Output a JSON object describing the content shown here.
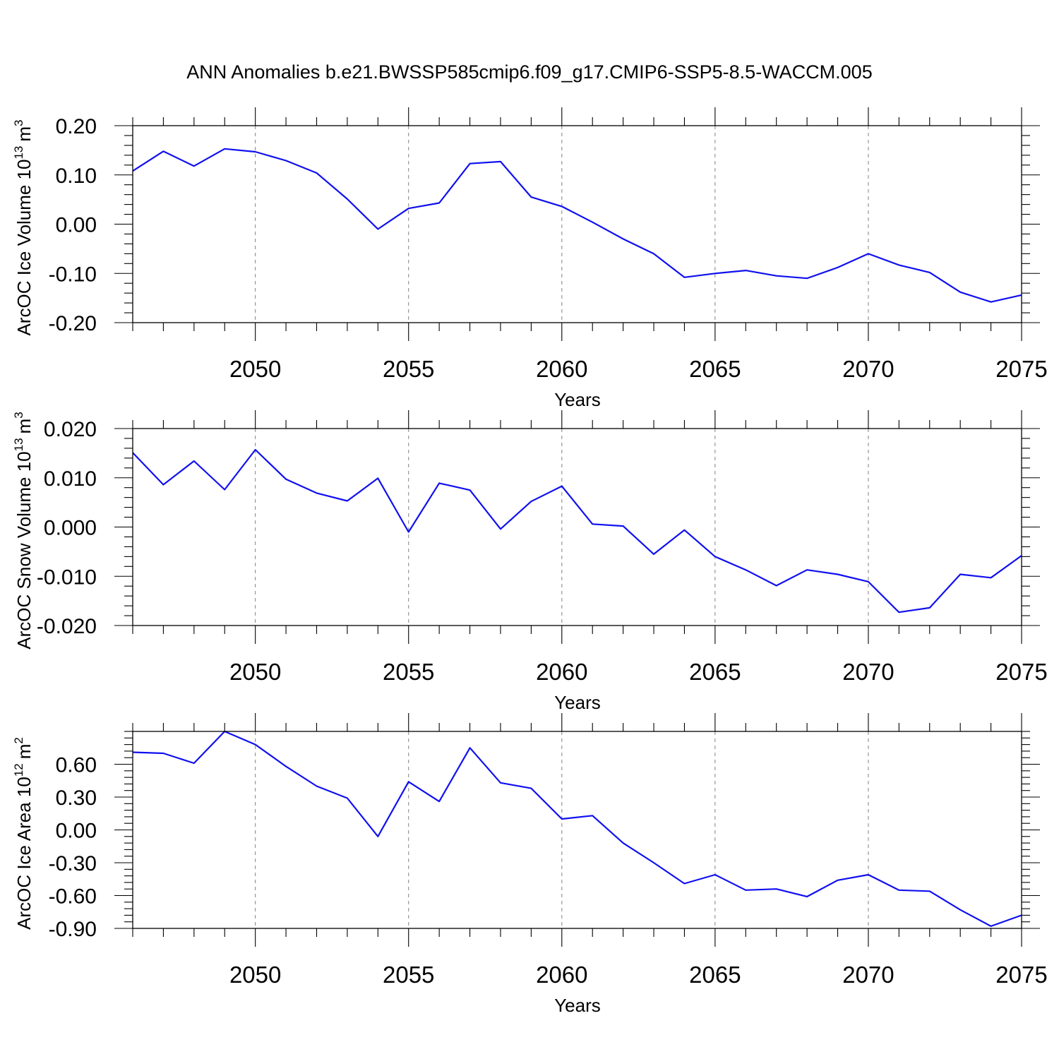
{
  "title": "ANN Anomalies b.e21.BWSSP585cmip6.f09_g17.CMIP6-SSP5-8.5-WACCM.005",
  "line_color": "#1010f0",
  "chart_data": [
    {
      "type": "line",
      "ylabel_prefix": "ArcOC Ice Volume 10",
      "ylabel_exp": "13",
      "ylabel_unit": "m",
      "ylabel_unit_exp": "3",
      "xlabel": "Years",
      "xlim": [
        2046,
        2075
      ],
      "ylim": [
        -0.2,
        0.2
      ],
      "x_ticks": [
        2050,
        2055,
        2060,
        2065,
        2070,
        2075
      ],
      "y_ticks": [
        -0.2,
        -0.1,
        0.0,
        0.1,
        0.2
      ],
      "y_tick_labels": [
        "-0.20",
        "-0.10",
        "0.00",
        "0.10",
        "0.20"
      ],
      "x": [
        2046,
        2047,
        2048,
        2049,
        2050,
        2051,
        2052,
        2053,
        2054,
        2055,
        2056,
        2057,
        2058,
        2059,
        2060,
        2061,
        2062,
        2063,
        2064,
        2065,
        2066,
        2067,
        2068,
        2069,
        2070,
        2071,
        2072,
        2073,
        2074,
        2075
      ],
      "values": [
        0.108,
        0.148,
        0.118,
        0.153,
        0.147,
        0.129,
        0.104,
        0.051,
        -0.01,
        0.032,
        0.043,
        0.123,
        0.127,
        0.055,
        0.036,
        0.004,
        -0.03,
        -0.06,
        -0.108,
        -0.1,
        -0.094,
        -0.105,
        -0.11,
        -0.088,
        -0.06,
        -0.083,
        -0.098,
        -0.138,
        -0.158,
        -0.144
      ]
    },
    {
      "type": "line",
      "ylabel_prefix": "ArcOC Snow Volume 10",
      "ylabel_exp": "13",
      "ylabel_unit": "m",
      "ylabel_unit_exp": "3",
      "xlabel": "Years",
      "xlim": [
        2046,
        2075
      ],
      "ylim": [
        -0.02,
        0.02
      ],
      "x_ticks": [
        2050,
        2055,
        2060,
        2065,
        2070,
        2075
      ],
      "y_ticks": [
        -0.02,
        -0.01,
        0.0,
        0.01,
        0.02
      ],
      "y_tick_labels": [
        "-0.020",
        "-0.010",
        "0.000",
        "0.010",
        "0.020"
      ],
      "x": [
        2046,
        2047,
        2048,
        2049,
        2050,
        2051,
        2052,
        2053,
        2054,
        2055,
        2056,
        2057,
        2058,
        2059,
        2060,
        2061,
        2062,
        2063,
        2064,
        2065,
        2066,
        2067,
        2068,
        2069,
        2070,
        2071,
        2072,
        2073,
        2074,
        2075
      ],
      "values": [
        0.0151,
        0.0086,
        0.0134,
        0.0076,
        0.0157,
        0.0097,
        0.0069,
        0.0053,
        0.0099,
        -0.001,
        0.0089,
        0.0075,
        -0.0004,
        0.0052,
        0.0083,
        0.0006,
        0.0002,
        -0.0055,
        -0.0006,
        -0.006,
        -0.0087,
        -0.0119,
        -0.0087,
        -0.0096,
        -0.0111,
        -0.0173,
        -0.0164,
        -0.0096,
        -0.0103,
        -0.0058
      ]
    },
    {
      "type": "line",
      "ylabel_prefix": "ArcOC Ice Area 10",
      "ylabel_exp": "12",
      "ylabel_unit": "m",
      "ylabel_unit_exp": "2",
      "xlabel": "Years",
      "xlim": [
        2046,
        2075
      ],
      "ylim": [
        -0.9,
        0.9
      ],
      "x_ticks": [
        2050,
        2055,
        2060,
        2065,
        2070,
        2075
      ],
      "y_ticks": [
        -0.9,
        -0.6,
        -0.3,
        0.0,
        0.3,
        0.6
      ],
      "y_tick_labels": [
        "-0.90",
        "-0.60",
        "-0.30",
        "0.00",
        "0.30",
        "0.60"
      ],
      "x": [
        2046,
        2047,
        2048,
        2049,
        2050,
        2051,
        2052,
        2053,
        2054,
        2055,
        2056,
        2057,
        2058,
        2059,
        2060,
        2061,
        2062,
        2063,
        2064,
        2065,
        2066,
        2067,
        2068,
        2069,
        2070,
        2071,
        2072,
        2073,
        2074,
        2075
      ],
      "values": [
        0.71,
        0.7,
        0.61,
        0.9,
        0.78,
        0.58,
        0.4,
        0.29,
        -0.06,
        0.44,
        0.26,
        0.75,
        0.43,
        0.38,
        0.1,
        0.13,
        -0.12,
        -0.3,
        -0.49,
        -0.41,
        -0.55,
        -0.54,
        -0.61,
        -0.46,
        -0.41,
        -0.55,
        -0.56,
        -0.73,
        -0.88,
        -0.78
      ]
    }
  ]
}
